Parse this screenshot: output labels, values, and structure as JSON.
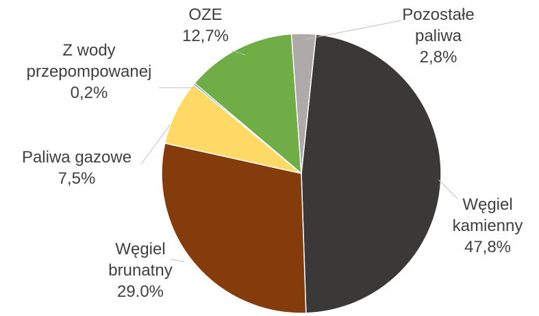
{
  "chart_data": {
    "type": "pie",
    "categories": [
      "Węgiel kamienny",
      "Węgiel brunatny",
      "Paliwa gazowe",
      "Z wody przepompowanej",
      "OZE",
      "Pozostałe paliwa"
    ],
    "values": [
      47.8,
      29.0,
      7.5,
      0.2,
      12.7,
      2.8
    ],
    "value_labels": [
      "47,8%",
      "29.0%",
      "7,5%",
      "0,2%",
      "12,7%",
      "2,8%"
    ],
    "colors": [
      "#3b3838",
      "#843c0c",
      "#ffd966",
      "#2e75b6",
      "#70ad47",
      "#aeaaaa"
    ]
  }
}
